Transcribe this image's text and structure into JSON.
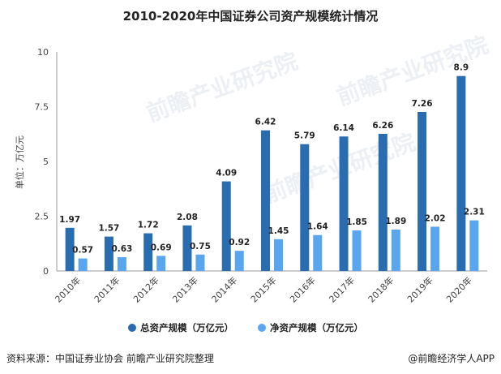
{
  "chart_data": {
    "type": "bar",
    "title": "2010-2020年中国证券公司资产规模统计情况",
    "ylabel": "单位：万亿元",
    "xlabel": "",
    "ylim": [
      0,
      10
    ],
    "yticks": [
      0,
      2.5,
      5,
      7.5,
      10
    ],
    "grid": false,
    "legend_position": "bottom",
    "categories": [
      "2010年",
      "2011年",
      "2012年",
      "2013年",
      "2014年",
      "2015年",
      "2016年",
      "2017年",
      "2018年",
      "2019年",
      "2020年"
    ],
    "series": [
      {
        "name": "总资产规模（万亿元）",
        "color": "#2a6cb0",
        "values": [
          1.97,
          1.57,
          1.72,
          2.08,
          4.09,
          6.42,
          5.79,
          6.14,
          6.26,
          7.26,
          8.9
        ]
      },
      {
        "name": "净资产规模（万亿元）",
        "color": "#5aa6ee",
        "values": [
          0.57,
          0.63,
          0.69,
          0.75,
          0.92,
          1.45,
          1.64,
          1.85,
          1.89,
          2.02,
          2.31
        ]
      }
    ]
  },
  "footer": {
    "source": "资料来源：中国证券业协会 前瞻产业研究院整理",
    "brand": "@前瞻经济学人APP"
  },
  "watermark": "前瞻产业研究院"
}
